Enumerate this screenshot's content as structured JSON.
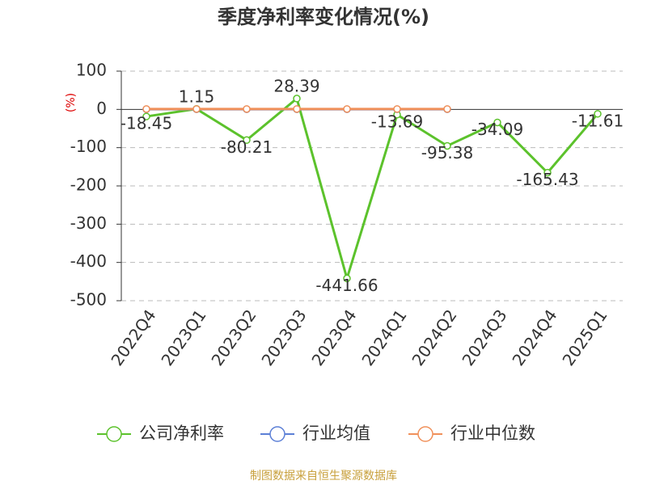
{
  "chart_data": {
    "type": "line",
    "title": "季度净利率变化情况(%)",
    "y_label": "(%)",
    "categories": [
      "2022Q4",
      "2023Q1",
      "2023Q2",
      "2023Q3",
      "2023Q4",
      "2024Q1",
      "2024Q2",
      "2024Q3",
      "2024Q4",
      "2025Q1"
    ],
    "series": [
      {
        "name": "公司净利率",
        "color": "#5cc22c",
        "values": [
          -18.45,
          1.15,
          -80.21,
          28.39,
          -441.66,
          -13.69,
          -95.38,
          -34.09,
          -165.43,
          -11.61
        ],
        "labels": true
      },
      {
        "name": "行业均值",
        "color": "#5b7fd6",
        "values": [
          0.5,
          0.5,
          0.5,
          0.5,
          0.5,
          0.5,
          0.5,
          null,
          null,
          null
        ]
      },
      {
        "name": "行业中位数",
        "color": "#f0905a",
        "values": [
          1,
          1,
          1,
          1,
          1,
          1,
          1,
          null,
          null,
          null
        ]
      }
    ],
    "ylim": [
      -500,
      100
    ],
    "yticks": [
      -500,
      -400,
      -300,
      -200,
      -100,
      0,
      100
    ],
    "grid": true,
    "source": "制图数据来自恒生聚源数据库"
  }
}
